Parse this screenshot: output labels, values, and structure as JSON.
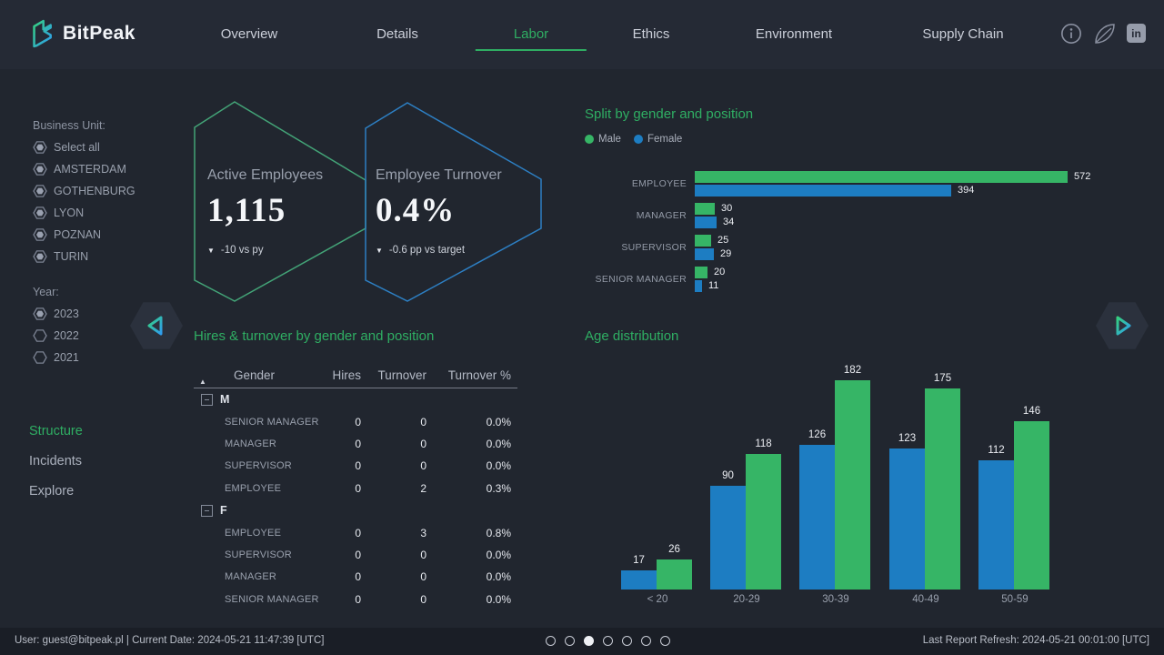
{
  "colors": {
    "green": "#2fae63",
    "bar_green": "#36b566",
    "bar_blue": "#1d7dc2",
    "hex_green": "#43a377",
    "hex_blue": "#2d7fc3",
    "radio_stroke": "#7b8292",
    "radio_fill": "#9aa1b0"
  },
  "brand": {
    "name": "BitPeak"
  },
  "nav": {
    "items": [
      "Overview",
      "Details",
      "Labor",
      "Ethics",
      "Environment",
      "Supply Chain"
    ],
    "active": "Labor"
  },
  "header_icons": [
    "info-icon",
    "leaf-icon",
    "linkedin-icon"
  ],
  "linkedin_text": "in",
  "sidebar": {
    "business_unit_label": "Business Unit:",
    "business_units": [
      {
        "label": "Select all",
        "selected": true
      },
      {
        "label": "AMSTERDAM",
        "selected": true
      },
      {
        "label": "GOTHENBURG",
        "selected": true
      },
      {
        "label": "LYON",
        "selected": true
      },
      {
        "label": "POZNAN",
        "selected": true
      },
      {
        "label": "TURIN",
        "selected": true
      }
    ],
    "year_label": "Year:",
    "years": [
      {
        "label": "2023",
        "selected": true
      },
      {
        "label": "2022",
        "selected": false
      },
      {
        "label": "2021",
        "selected": false
      }
    ],
    "pages": [
      {
        "label": "Structure",
        "active": true
      },
      {
        "label": "Incidents",
        "active": false
      },
      {
        "label": "Explore",
        "active": false
      }
    ]
  },
  "kpis": [
    {
      "label": "Active Employees",
      "value": "1,115",
      "direction": "down",
      "delta": "-10 vs py"
    },
    {
      "label": "Employee Turnover",
      "value": "0.4%",
      "direction": "down",
      "delta": "-0.6 pp vs target"
    }
  ],
  "chart_data": [
    {
      "type": "bar",
      "orientation": "horizontal",
      "title": "Split by gender and position",
      "categories": [
        "EMPLOYEE",
        "MANAGER",
        "SUPERVISOR",
        "SENIOR MANAGER"
      ],
      "series": [
        {
          "name": "Male",
          "color": "#36b566",
          "values": [
            572,
            30,
            25,
            20
          ]
        },
        {
          "name": "Female",
          "color": "#1d7dc2",
          "values": [
            394,
            34,
            29,
            11
          ]
        }
      ],
      "xlim": [
        0,
        572
      ],
      "data_labels": true,
      "legend_position": "top",
      "grid": false
    },
    {
      "type": "bar",
      "orientation": "vertical",
      "title": "Age distribution",
      "categories": [
        "< 20",
        "20-29",
        "30-39",
        "40-49",
        "50-59"
      ],
      "series": [
        {
          "name": "Female",
          "color": "#1d7dc2",
          "values": [
            17,
            90,
            126,
            123,
            112
          ]
        },
        {
          "name": "Male",
          "color": "#36b566",
          "values": [
            26,
            118,
            182,
            175,
            146
          ]
        }
      ],
      "ylim": [
        0,
        182
      ],
      "data_labels": true,
      "grid": false
    },
    {
      "type": "table",
      "title": "Hires & turnover by gender and position",
      "columns": [
        "Gender",
        "Hires",
        "Turnover",
        "Turnover %"
      ],
      "groups": [
        {
          "label": "M",
          "rows": [
            [
              "SENIOR MANAGER",
              "0",
              "0",
              "0.0%"
            ],
            [
              "MANAGER",
              "0",
              "0",
              "0.0%"
            ],
            [
              "SUPERVISOR",
              "0",
              "0",
              "0.0%"
            ],
            [
              "EMPLOYEE",
              "0",
              "2",
              "0.3%"
            ]
          ]
        },
        {
          "label": "F",
          "rows": [
            [
              "EMPLOYEE",
              "0",
              "3",
              "0.8%"
            ],
            [
              "SUPERVISOR",
              "0",
              "0",
              "0.0%"
            ],
            [
              "MANAGER",
              "0",
              "0",
              "0.0%"
            ],
            [
              "SENIOR MANAGER",
              "0",
              "0",
              "0.0%"
            ]
          ]
        }
      ]
    }
  ],
  "footer": {
    "user_text": "User: guest@bitpeak.pl | Current Date: 2024-05-21 11:47:39 [UTC]",
    "refresh_text": "Last Report Refresh: 2024-05-21 00:01:00 [UTC]",
    "page_dots": {
      "count": 7,
      "active_index": 3
    }
  }
}
